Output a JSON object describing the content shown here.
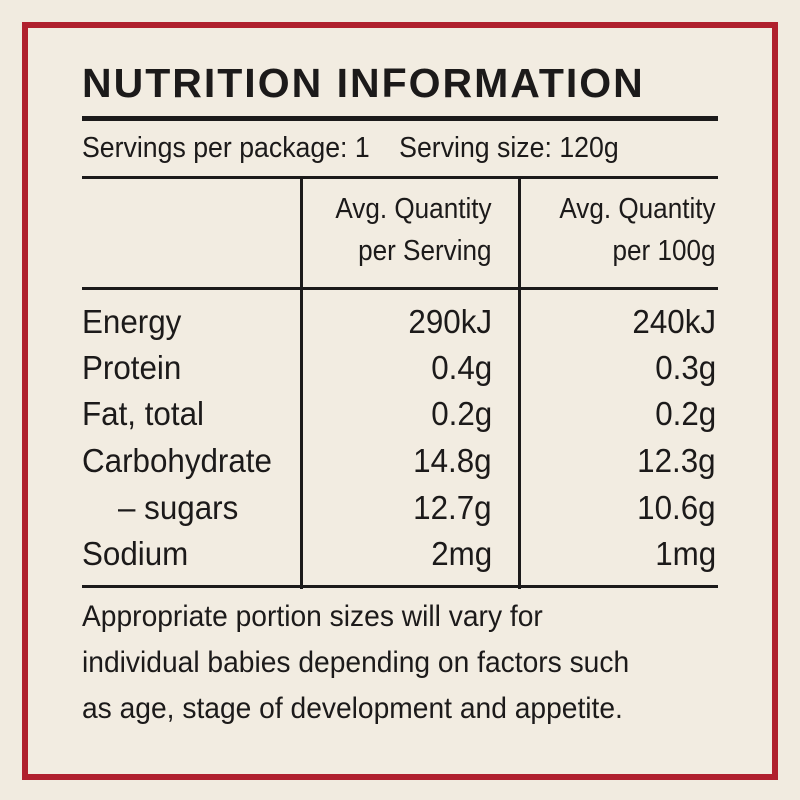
{
  "panel": {
    "title": "NUTRITION INFORMATION",
    "servings_per_package": "Servings per package: 1",
    "serving_size": "Serving size: 120g",
    "col_serving": [
      "Avg. Quantity",
      "per Serving"
    ],
    "col_100g": [
      "Avg. Quantity",
      "per 100g"
    ],
    "rows": [
      {
        "label": "Energy",
        "serving": "290kJ",
        "per100": "240kJ"
      },
      {
        "label": "Protein",
        "serving": "0.4g",
        "per100": "0.3g"
      },
      {
        "label": "Fat, total",
        "serving": "0.2g",
        "per100": "0.2g"
      },
      {
        "label": "Carbohydrate",
        "serving": "14.8g",
        "per100": "12.3g"
      },
      {
        "label": "– sugars",
        "serving": "12.7g",
        "per100": "10.6g"
      },
      {
        "label": "Sodium",
        "serving": "2mg",
        "per100": "1mg"
      }
    ],
    "footnote": [
      "Appropriate portion sizes will vary for",
      "individual babies depending on factors such",
      "as age, stage of development and appetite."
    ]
  },
  "colors": {
    "border": "#b0202e",
    "background": "#f2ece1",
    "text": "#1c1a1a"
  }
}
